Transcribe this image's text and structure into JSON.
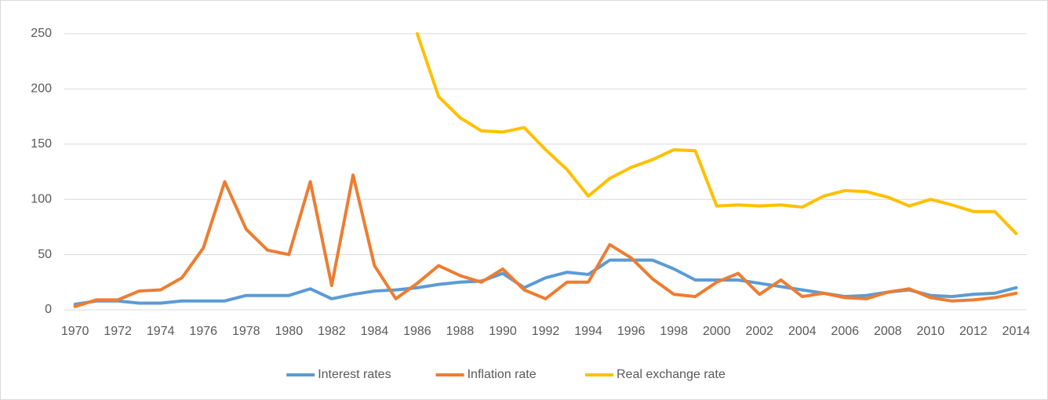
{
  "chart_data": {
    "type": "line",
    "categories": [
      "1970",
      null,
      "1972",
      null,
      "1974",
      null,
      "1976",
      null,
      "1978",
      null,
      "1980",
      null,
      "1982",
      null,
      "1984",
      null,
      "1986",
      null,
      "1988",
      null,
      "1990",
      null,
      "1992",
      null,
      "1994",
      null,
      "1996",
      null,
      "1998",
      null,
      "2000",
      null,
      "2002",
      null,
      "2004",
      null,
      "2006",
      null,
      "2008",
      null,
      "2010",
      null,
      "2012",
      null,
      "2014"
    ],
    "series": [
      {
        "name": "Interest rates",
        "color": "#5b9bd5",
        "values": [
          5,
          8,
          8,
          6,
          6,
          8,
          8,
          8,
          13,
          13,
          13,
          19,
          10,
          14,
          17,
          18,
          20,
          23,
          25,
          26,
          33,
          20,
          29,
          34,
          32,
          45,
          45,
          45,
          37,
          27,
          27,
          27,
          24,
          21,
          18,
          15,
          12,
          13,
          16,
          18,
          13,
          12,
          14,
          15,
          20
        ]
      },
      {
        "name": "Inflation rate",
        "color": "#ed7d31",
        "values": [
          3,
          9,
          9,
          17,
          18,
          29,
          56,
          116,
          73,
          54,
          50,
          116,
          22,
          122,
          40,
          10,
          24,
          40,
          31,
          25,
          37,
          18,
          10,
          25,
          25,
          59,
          47,
          28,
          14,
          12,
          25,
          33,
          14,
          27,
          12,
          15,
          11,
          10,
          16,
          19,
          11,
          8,
          9,
          11,
          15
        ]
      },
      {
        "name": "Real exchange rate",
        "color": "#ffc000",
        "values": [
          null,
          null,
          null,
          null,
          null,
          null,
          null,
          null,
          null,
          null,
          null,
          null,
          null,
          null,
          null,
          null,
          250,
          193,
          174,
          162,
          161,
          165,
          145,
          127,
          103,
          119,
          129,
          136,
          145,
          144,
          94,
          95,
          94,
          95,
          93,
          103,
          108,
          107,
          102,
          94,
          100,
          95,
          89,
          89,
          69
        ]
      }
    ],
    "ylim": [
      0,
      250
    ],
    "yticks": [
      0,
      50,
      100,
      150,
      200,
      250
    ],
    "grid": true,
    "legend": "bottom"
  }
}
